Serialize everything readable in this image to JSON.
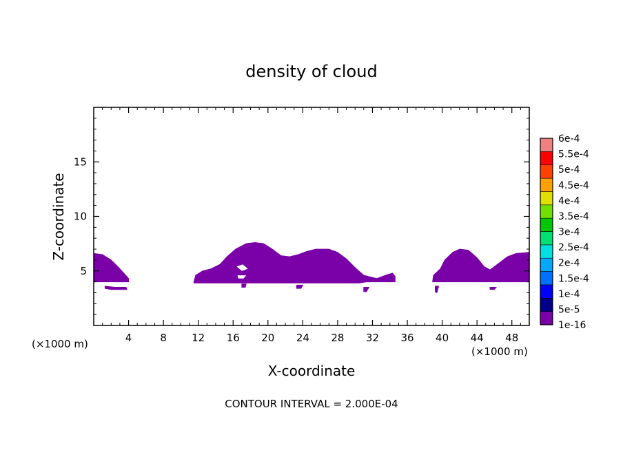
{
  "chart_data": {
    "type": "heatmap",
    "title": "density of cloud",
    "xlabel": "X-coordinate",
    "ylabel": "Z-coordinate",
    "x_unit_left": "(×1000 m)",
    "x_unit_right": "(×1000 m)",
    "footer": "CONTOUR INTERVAL = 2.000E-04",
    "xlim": [
      0,
      50
    ],
    "ylim": [
      0,
      20
    ],
    "x_ticks": [
      4,
      8,
      12,
      16,
      20,
      24,
      28,
      32,
      36,
      40,
      44,
      48
    ],
    "x_tick_labels": [
      "4",
      "8",
      "12",
      "16",
      "20",
      "24",
      "28",
      "32",
      "36",
      "40",
      "44",
      "48"
    ],
    "y_ticks": [
      5,
      10,
      15
    ],
    "y_tick_labels": [
      "5",
      "10",
      "15"
    ],
    "colorbar": {
      "levels": [
        "1e-16",
        "5e-5",
        "1e-4",
        "1.5e-4",
        "2e-4",
        "2.5e-4",
        "3e-4",
        "3.5e-4",
        "4e-4",
        "4.5e-4",
        "5e-4",
        "5.5e-4",
        "6e-4"
      ],
      "colors": [
        "#7a00a8",
        "#00008b",
        "#0000ff",
        "#0070ff",
        "#00a8ff",
        "#00e0e0",
        "#00e070",
        "#00c800",
        "#70e000",
        "#e0e000",
        "#ffa000",
        "#ff4000",
        "#ff0000",
        "#f08080"
      ]
    },
    "region_color": "#7a00a8",
    "regions": [
      {
        "name": "cloud-left",
        "points": [
          [
            0,
            6.6
          ],
          [
            1,
            6.5
          ],
          [
            2,
            6
          ],
          [
            3,
            5.2
          ],
          [
            4,
            4.3
          ],
          [
            4,
            4
          ],
          [
            0,
            4
          ]
        ]
      },
      {
        "name": "cloud-center",
        "points": [
          [
            11.5,
            4
          ],
          [
            11.7,
            4.6
          ],
          [
            12.5,
            5
          ],
          [
            13.5,
            5.2
          ],
          [
            14.5,
            5.6
          ],
          [
            15.3,
            6.3
          ],
          [
            16.3,
            7
          ],
          [
            17.5,
            7.5
          ],
          [
            18.5,
            7.6
          ],
          [
            19.5,
            7.5
          ],
          [
            20.5,
            7
          ],
          [
            21.5,
            6.4
          ],
          [
            22.5,
            6.3
          ],
          [
            23.5,
            6.5
          ],
          [
            24.5,
            6.8
          ],
          [
            25.5,
            7
          ],
          [
            27,
            7
          ],
          [
            28,
            6.7
          ],
          [
            29,
            6.1
          ],
          [
            30,
            5.3
          ],
          [
            31,
            4.6
          ],
          [
            32.5,
            4.3
          ],
          [
            33.5,
            4.6
          ],
          [
            34.3,
            4.8
          ],
          [
            34.6,
            4.5
          ],
          [
            34.6,
            4
          ],
          [
            31.3,
            4
          ],
          [
            30.5,
            3.9
          ],
          [
            11.5,
            3.9
          ]
        ]
      },
      {
        "name": "cloud-right",
        "points": [
          [
            38.9,
            4
          ],
          [
            39,
            4.6
          ],
          [
            39.8,
            5.2
          ],
          [
            40.3,
            6
          ],
          [
            41.2,
            6.7
          ],
          [
            42,
            7
          ],
          [
            43,
            6.9
          ],
          [
            44,
            6.2
          ],
          [
            44.8,
            5.4
          ],
          [
            45.5,
            5.1
          ],
          [
            46.5,
            5.7
          ],
          [
            47.5,
            6.3
          ],
          [
            48.5,
            6.6
          ],
          [
            50,
            6.7
          ],
          [
            50,
            4
          ],
          [
            38.9,
            4
          ]
        ]
      },
      {
        "name": "fragment-left",
        "points": [
          [
            1.3,
            3.6
          ],
          [
            2.4,
            3.5
          ],
          [
            3.7,
            3.5
          ],
          [
            3.8,
            3.3
          ],
          [
            2,
            3.3
          ],
          [
            1.3,
            3.4
          ]
        ]
      },
      {
        "name": "fragment-mid-1",
        "points": [
          [
            17,
            3.8
          ],
          [
            17.5,
            3.8
          ],
          [
            17.4,
            3.5
          ],
          [
            17,
            3.5
          ]
        ]
      },
      {
        "name": "fragment-mid-2",
        "points": [
          [
            23.3,
            3.7
          ],
          [
            24,
            3.7
          ],
          [
            23.8,
            3.4
          ],
          [
            23.3,
            3.4
          ]
        ]
      },
      {
        "name": "fragment-mid-3",
        "points": [
          [
            31,
            3.5
          ],
          [
            31.6,
            3.5
          ],
          [
            31.3,
            3.1
          ],
          [
            31,
            3.1
          ]
        ]
      },
      {
        "name": "fragment-right-1",
        "points": [
          [
            39.2,
            3.6
          ],
          [
            39.6,
            3.6
          ],
          [
            39.4,
            3.0
          ],
          [
            39.2,
            3.1
          ]
        ]
      },
      {
        "name": "fragment-right-2",
        "points": [
          [
            45.5,
            3.5
          ],
          [
            46.2,
            3.5
          ],
          [
            46,
            3.3
          ],
          [
            45.5,
            3.3
          ]
        ]
      }
    ],
    "holes": [
      {
        "name": "gap-center",
        "points": [
          [
            16.4,
            5.4
          ],
          [
            17.1,
            5.6
          ],
          [
            17.7,
            5.2
          ],
          [
            17,
            5
          ]
        ]
      },
      {
        "name": "gap-center-2",
        "points": [
          [
            16.5,
            4.6
          ],
          [
            17.5,
            4.6
          ],
          [
            17.2,
            4.3
          ],
          [
            16.6,
            4.3
          ]
        ]
      }
    ]
  }
}
